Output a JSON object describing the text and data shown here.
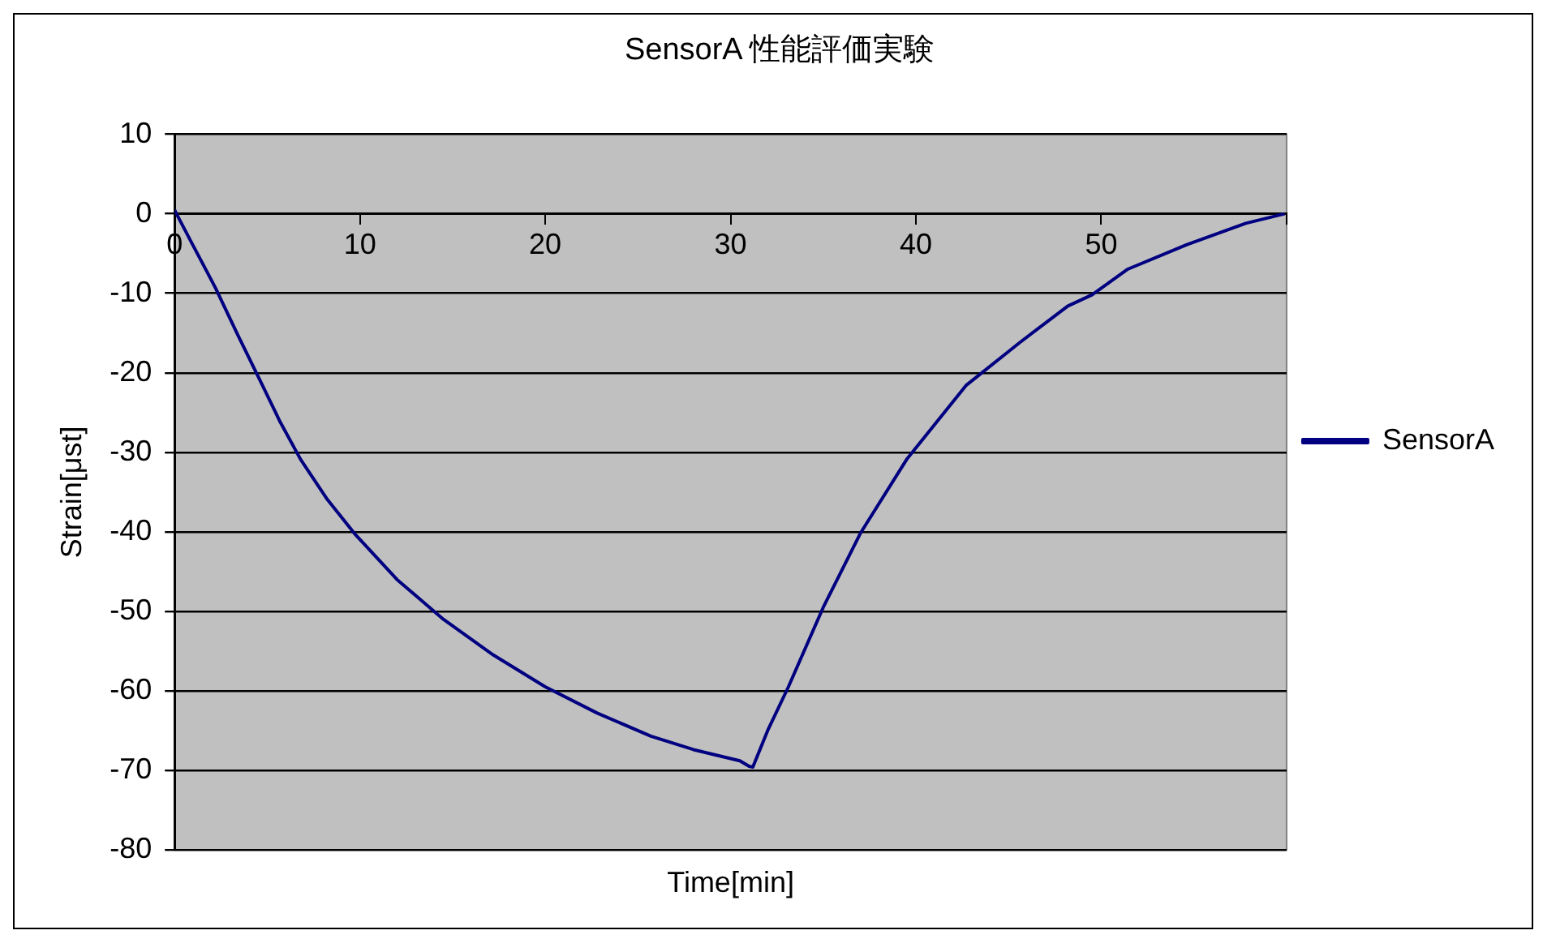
{
  "chart_data": {
    "type": "line",
    "title": "SensorA 性能評価実験",
    "xlabel": "Time[min]",
    "ylabel": "Strain[μst]",
    "xlim": [
      0,
      60
    ],
    "xticks": [
      0,
      10,
      20,
      30,
      40,
      50,
      {
        "value": 60,
        "label": null
      }
    ],
    "ylim": [
      -80,
      10
    ],
    "yticks": [
      10,
      0,
      -10,
      -20,
      -30,
      -40,
      -50,
      -60,
      -70,
      -80
    ],
    "grid": "y",
    "legend": "right",
    "marker": "none",
    "line_style": "solid",
    "series": [
      {
        "name": "SensorA",
        "color": "#000080",
        "x": [
          0,
          0.1,
          1.0,
          2.2,
          3.4,
          4.6,
          5.7,
          6.8,
          8.2,
          9.7,
          12.0,
          14.5,
          17.2,
          20.0,
          22.8,
          25.7,
          28.0,
          30.5,
          31.0,
          31.2,
          32.0,
          33.1,
          35.0,
          37.0,
          39.5,
          42.7,
          45.6,
          48.2,
          49.5,
          51.4,
          54.6,
          57.8,
          59.9
        ],
        "values": [
          0.5,
          0,
          -4,
          -9.3,
          -15.2,
          -20.9,
          -26.2,
          -30.9,
          -35.8,
          -40.2,
          -46,
          -51,
          -55.5,
          -59.5,
          -62.8,
          -65.7,
          -67.4,
          -68.8,
          -69.5,
          -69.6,
          -65,
          -59.6,
          -49.5,
          -40.2,
          -30.9,
          -21.6,
          -16.2,
          -11.6,
          -10.2,
          -7,
          -3.9,
          -1.2,
          0
        ]
      }
    ]
  }
}
